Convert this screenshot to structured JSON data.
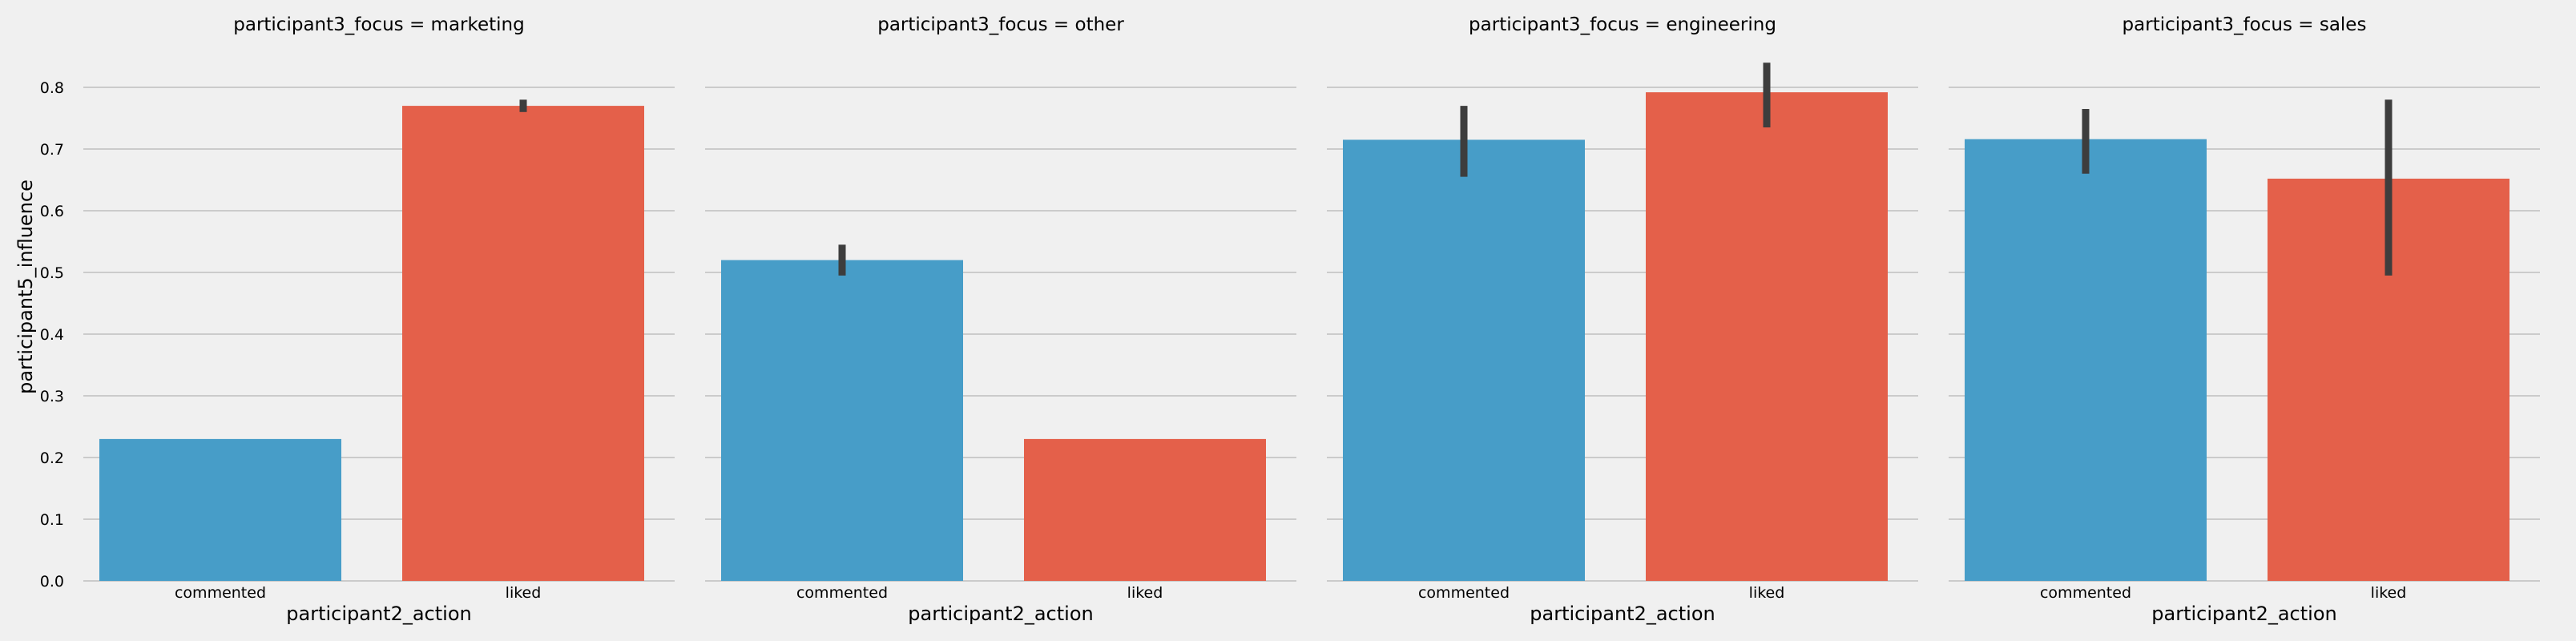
{
  "chart_data": {
    "type": "bar",
    "ylabel": "participant5_influence",
    "ylim": [
      0,
      0.85
    ],
    "yticks": [
      "0.0",
      "0.1",
      "0.2",
      "0.3",
      "0.4",
      "0.5",
      "0.6",
      "0.7",
      "0.8"
    ],
    "grid": true,
    "colors": {
      "commented": "#479dc8",
      "liked": "#e4604a",
      "errorbar": "#3d3d3d",
      "grid": "#cbcbcb"
    },
    "panels": [
      {
        "title": "participant3_focus = marketing",
        "xlabel": "participant2_action",
        "categories": [
          "commented",
          "liked"
        ],
        "values": [
          0.23,
          0.77
        ],
        "error_low": [
          0.23,
          0.76
        ],
        "error_high": [
          0.23,
          0.78
        ]
      },
      {
        "title": "participant3_focus = other",
        "xlabel": "participant2_action",
        "categories": [
          "commented",
          "liked"
        ],
        "values": [
          0.52,
          0.23
        ],
        "error_low": [
          0.495,
          0.23
        ],
        "error_high": [
          0.545,
          0.23
        ]
      },
      {
        "title": "participant3_focus = engineering",
        "xlabel": "participant2_action",
        "categories": [
          "commented",
          "liked"
        ],
        "values": [
          0.715,
          0.792
        ],
        "error_low": [
          0.655,
          0.735
        ],
        "error_high": [
          0.77,
          0.84
        ]
      },
      {
        "title": "participant3_focus = sales",
        "xlabel": "participant2_action",
        "categories": [
          "commented",
          "liked"
        ],
        "values": [
          0.716,
          0.652
        ],
        "error_low": [
          0.66,
          0.495
        ],
        "error_high": [
          0.765,
          0.78
        ]
      }
    ]
  }
}
